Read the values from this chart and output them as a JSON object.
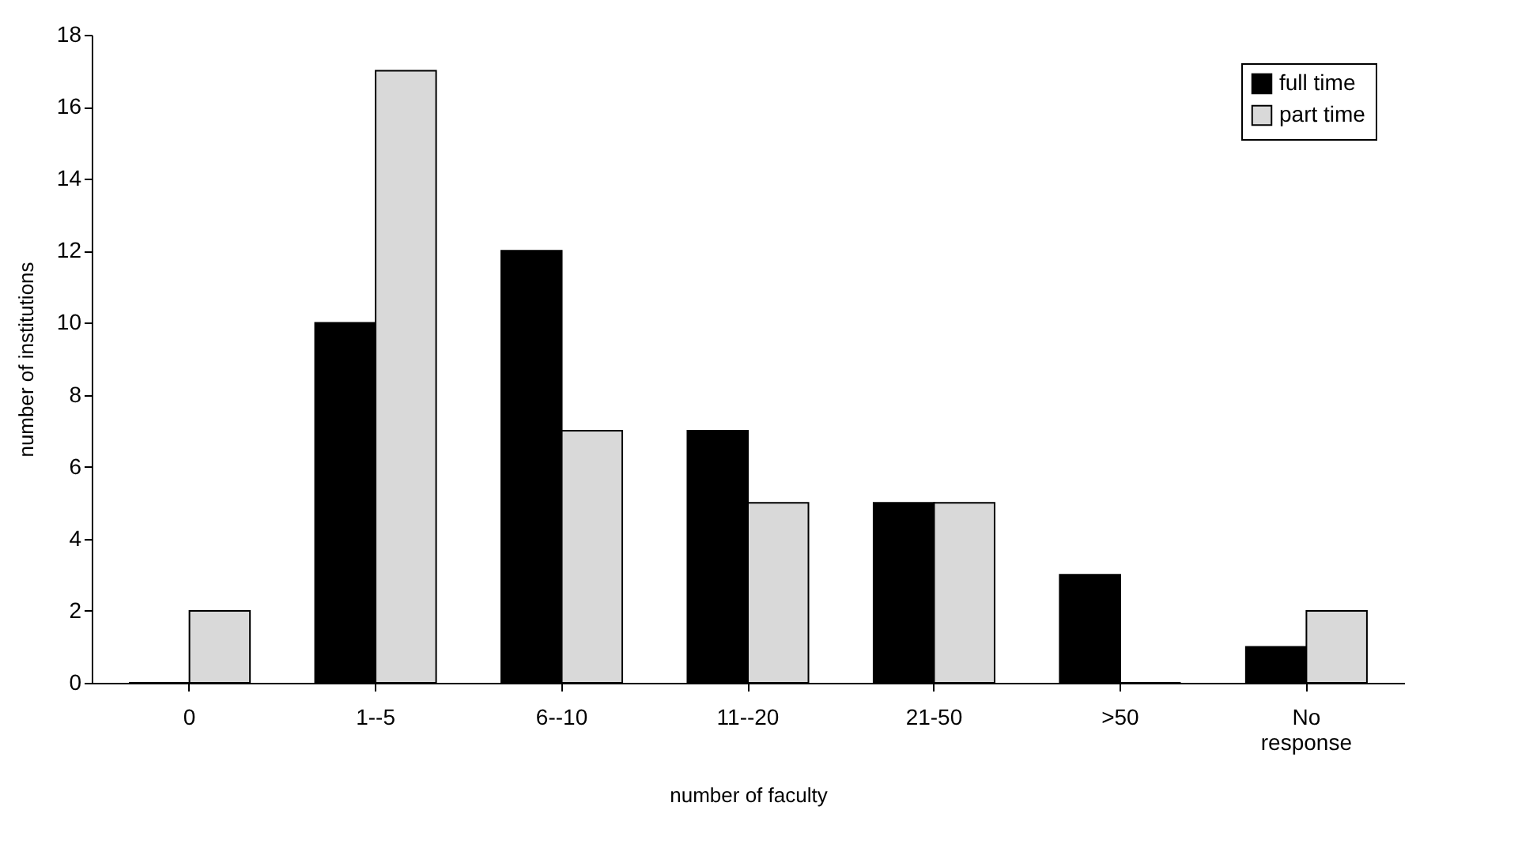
{
  "chart_data": {
    "type": "bar",
    "xlabel": "number of faculty",
    "ylabel": "number of institutions",
    "categories": [
      "0",
      "1--5",
      "6--10",
      "11--20",
      "21-50",
      ">50",
      "No response"
    ],
    "series": [
      {
        "name": "full time",
        "color": "#000000",
        "values": [
          0,
          10,
          12,
          7,
          5,
          3,
          1
        ]
      },
      {
        "name": "part time",
        "color": "#d9d9d9",
        "values": [
          2,
          17,
          7,
          5,
          5,
          0,
          2
        ]
      }
    ],
    "ylim": [
      0,
      18
    ],
    "yticks": [
      0,
      2,
      4,
      6,
      8,
      10,
      12,
      14,
      16,
      18
    ],
    "grid": false,
    "legend": "top right"
  }
}
